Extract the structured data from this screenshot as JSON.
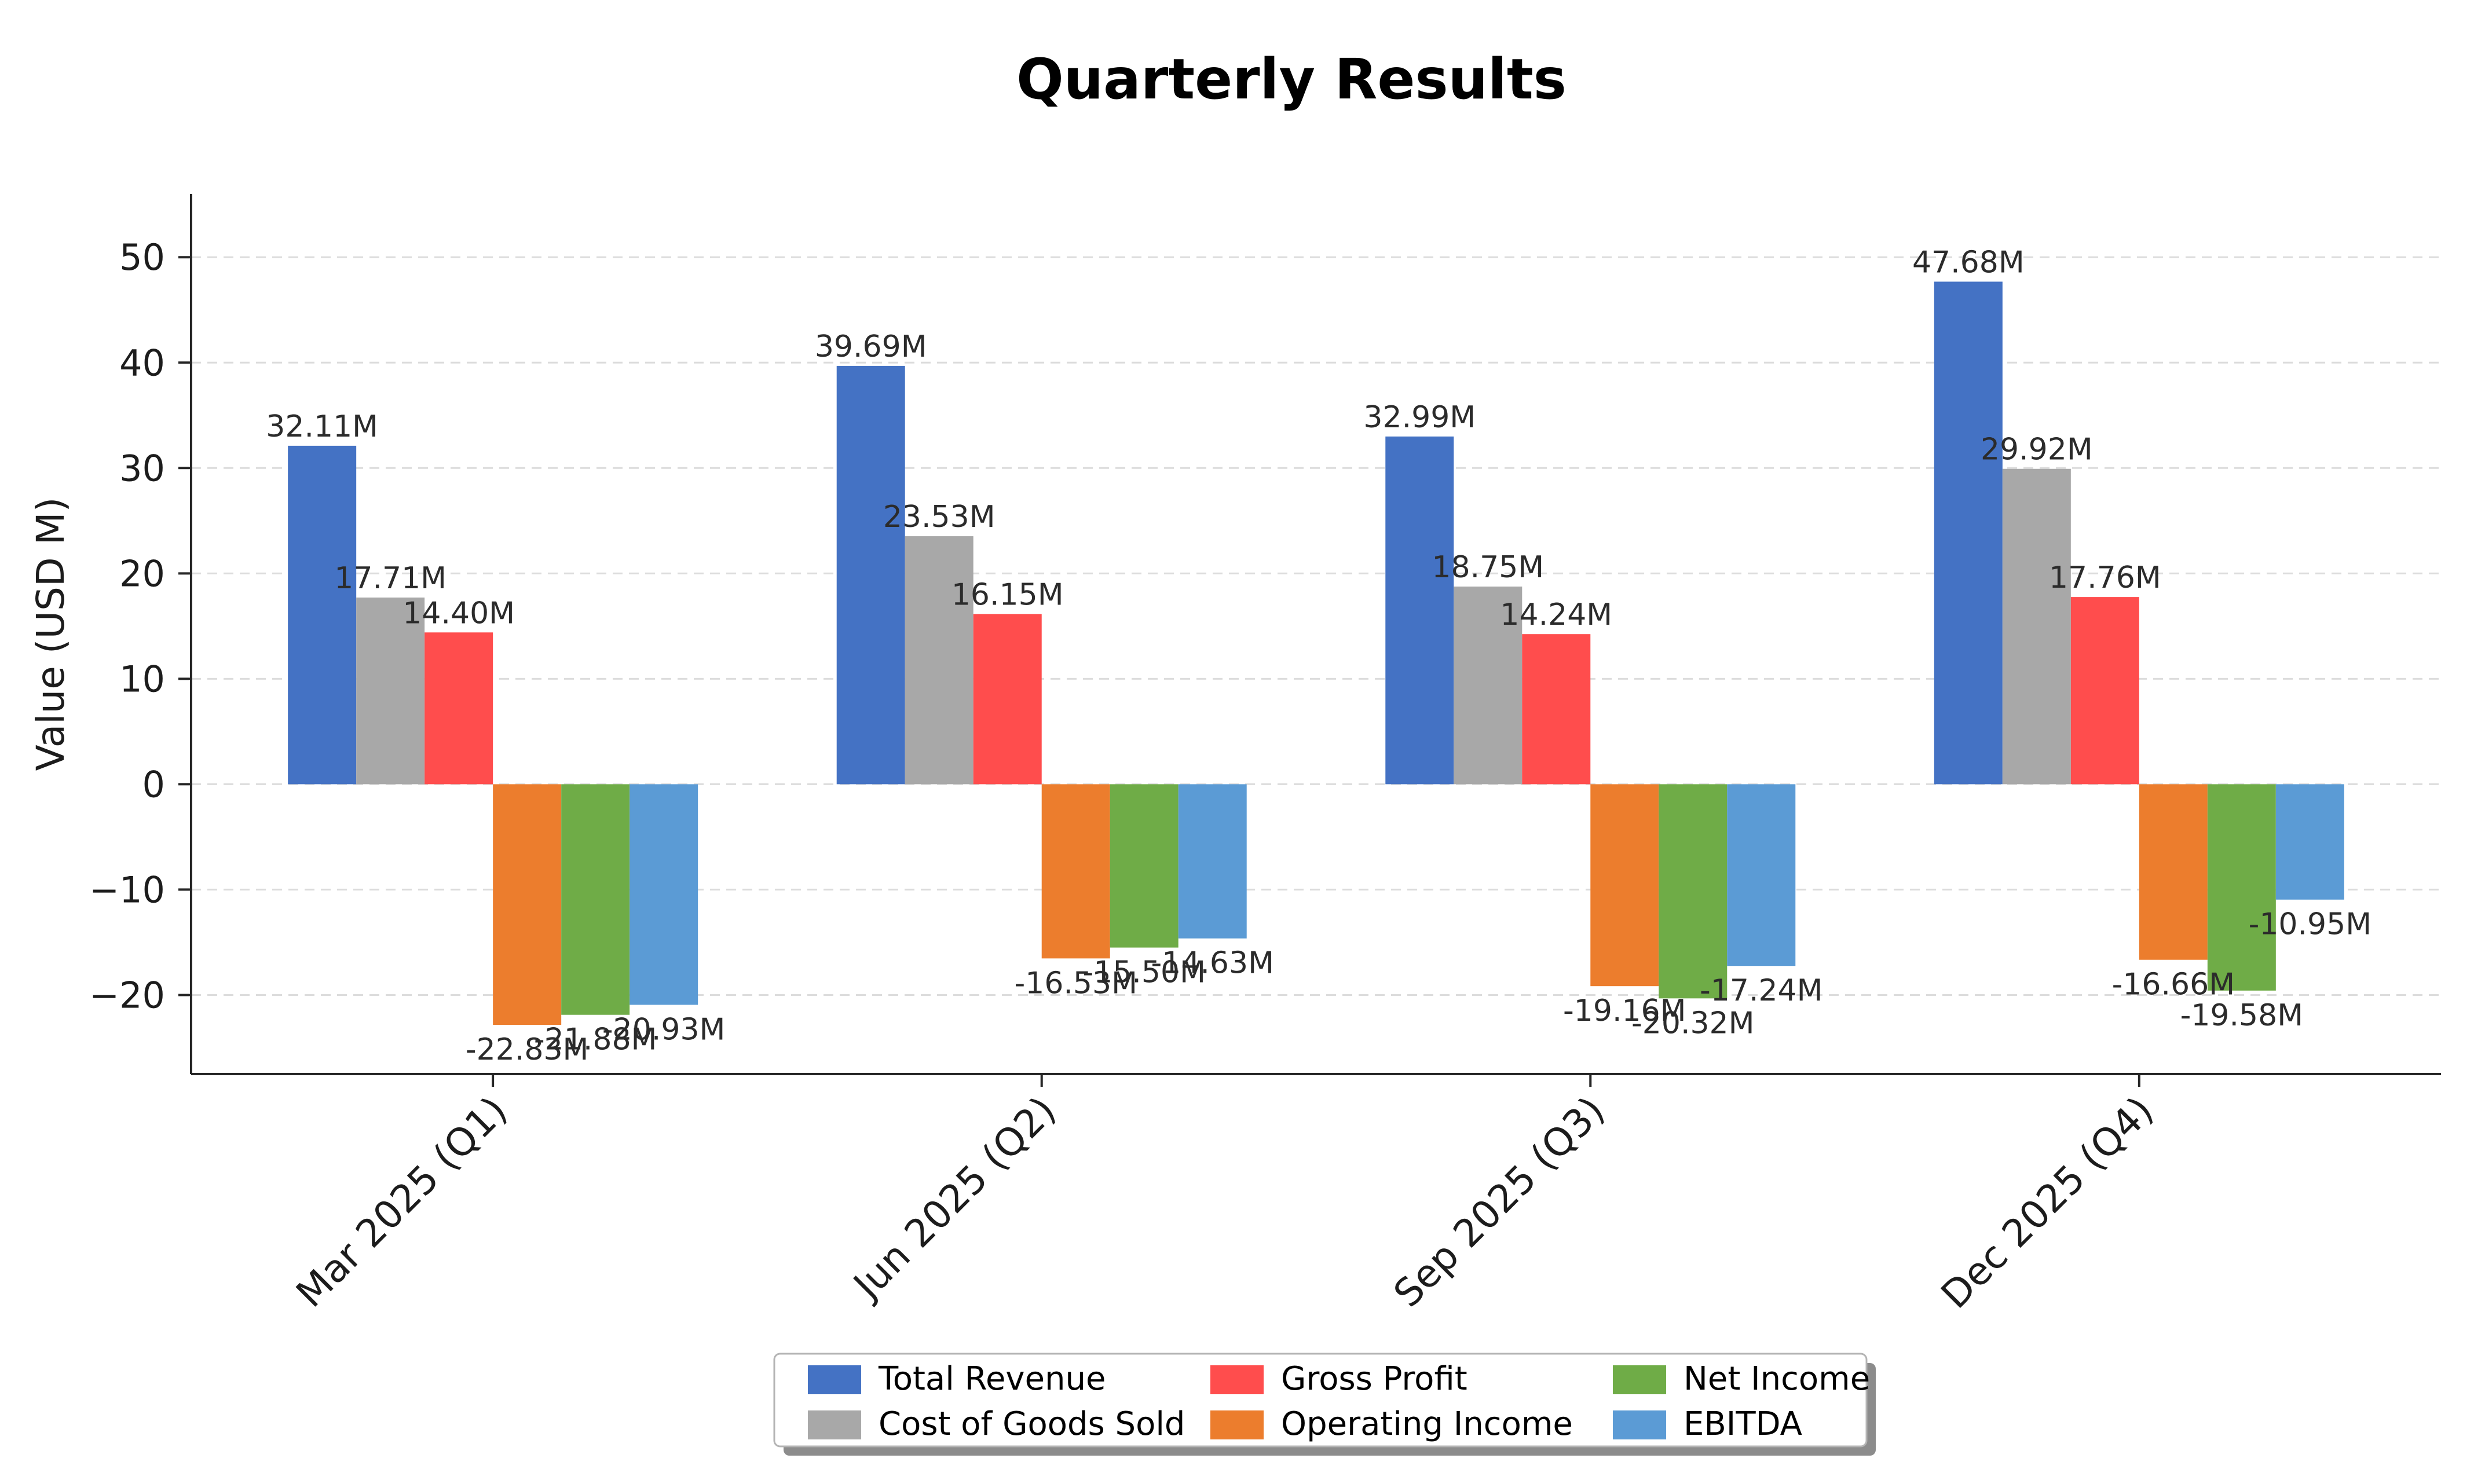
{
  "figure": {
    "background": "#ffffff"
  },
  "chart_data": {
    "type": "bar",
    "title": "Quarterly Results",
    "ylabel": "Value (USD M)",
    "xlabel": "",
    "categories": [
      "Mar 2025 (Q1)",
      "Jun 2025 (Q2)",
      "Sep 2025 (Q3)",
      "Dec 2025 (Q4)"
    ],
    "series": [
      {
        "name": "Total Revenue",
        "color": "#4472c4",
        "values": [
          32.11,
          39.69,
          32.99,
          47.68
        ],
        "labels": [
          "32.11M",
          "39.69M",
          "32.99M",
          "47.68M"
        ]
      },
      {
        "name": "Cost of Goods Sold",
        "color": "#a8a8a8",
        "values": [
          17.71,
          23.53,
          18.75,
          29.92
        ],
        "labels": [
          "17.71M",
          "23.53M",
          "18.75M",
          "29.92M"
        ]
      },
      {
        "name": "Gross Profit",
        "color": "#ff4d4d",
        "values": [
          14.4,
          16.15,
          14.24,
          17.76
        ],
        "labels": [
          "14.40M",
          "16.15M",
          "14.24M",
          "17.76M"
        ]
      },
      {
        "name": "Operating Income",
        "color": "#ec7d2d",
        "values": [
          -22.83,
          -16.53,
          -19.16,
          -16.66
        ],
        "labels": [
          "-22.83M",
          "-16.53M",
          "-19.16M",
          "-16.66M"
        ]
      },
      {
        "name": "Net Income",
        "color": "#6fac47",
        "values": [
          -21.88,
          -15.5,
          -20.32,
          -19.58
        ],
        "labels": [
          "-21.88M",
          "-15.50M",
          "-20.32M",
          "-19.58M"
        ]
      },
      {
        "name": "EBITDA",
        "color": "#5b9bd5",
        "values": [
          -20.93,
          -14.63,
          -17.24,
          -10.95
        ],
        "labels": [
          "-20.93M",
          "-14.63M",
          "-17.24M",
          "-10.95M"
        ]
      }
    ],
    "yticks": [
      -20,
      -10,
      0,
      10,
      20,
      30,
      40,
      50
    ],
    "ytick_labels": [
      "−20",
      "−10",
      "0",
      "10",
      "20",
      "30",
      "40",
      "50"
    ],
    "ylim": [
      -27.5,
      56
    ],
    "grid": {
      "axis": "y",
      "style": "dashed",
      "color": "#dcdcdc"
    },
    "legend": {
      "position": "lower center",
      "columns": 3,
      "rows": 2,
      "order": "column-major"
    },
    "value_suffix": "M"
  }
}
